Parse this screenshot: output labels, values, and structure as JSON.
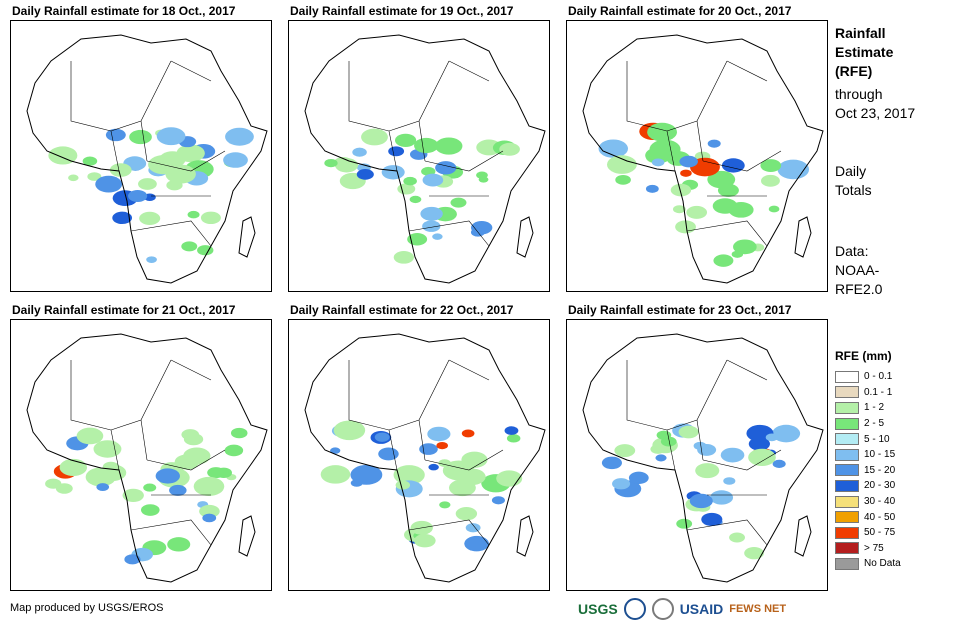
{
  "panels": [
    {
      "title": "Daily Rainfall estimate for 18 Oct., 2017"
    },
    {
      "title": "Daily Rainfall estimate for 19 Oct., 2017"
    },
    {
      "title": "Daily Rainfall estimate for 20 Oct., 2017"
    },
    {
      "title": "Daily Rainfall estimate for 21 Oct., 2017"
    },
    {
      "title": "Daily Rainfall estimate for 22 Oct., 2017"
    },
    {
      "title": "Daily Rainfall estimate for 23 Oct., 2017"
    }
  ],
  "side": {
    "title_line1": "Rainfall",
    "title_line2": "Estimate",
    "title_line3": "(RFE)",
    "through": "through",
    "date": "Oct 23, 2017",
    "daily1": "Daily",
    "daily2": "Totals",
    "data1": "Data:",
    "data2": "NOAA-",
    "data3": "RFE2.0"
  },
  "legend": {
    "title": "RFE (mm)",
    "items": [
      {
        "label": "0 - 0.1",
        "color": "#ffffff"
      },
      {
        "label": "0.1 - 1",
        "color": "#e8d9bf"
      },
      {
        "label": "1 - 2",
        "color": "#b4f0a8"
      },
      {
        "label": "2 - 5",
        "color": "#78e67a"
      },
      {
        "label": "5 - 10",
        "color": "#b3ecf4"
      },
      {
        "label": "10 - 15",
        "color": "#7fbef0"
      },
      {
        "label": "15 - 20",
        "color": "#4f93e6"
      },
      {
        "label": "20 - 30",
        "color": "#1f5fd8"
      },
      {
        "label": "30 - 40",
        "color": "#f5e07a"
      },
      {
        "label": "40 - 50",
        "color": "#f0a000"
      },
      {
        "label": "50 - 75",
        "color": "#f03c00"
      },
      {
        "label": "> 75",
        "color": "#b41e1e"
      },
      {
        "label": "No Data",
        "color": "#9a9a9a"
      }
    ]
  },
  "credit": "Map produced by USGS/EROS",
  "logos": {
    "usgs": "USGS",
    "usaid": "USAID",
    "fewsnet": "FEWS NET"
  }
}
